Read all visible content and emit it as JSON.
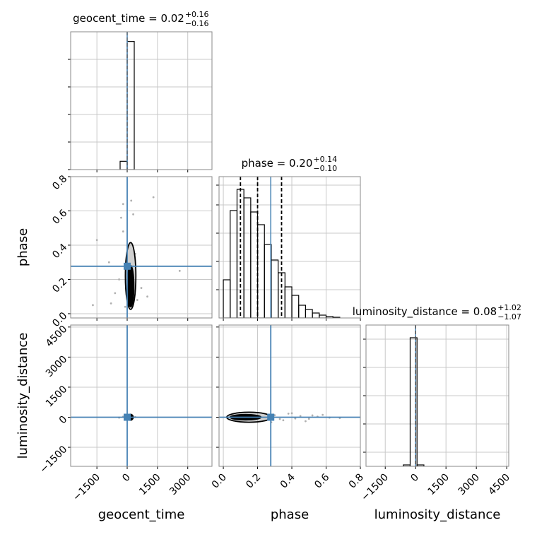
{
  "chart_data": {
    "type": "corner",
    "truth_color": "#4682b4",
    "grid": true,
    "parameters": [
      {
        "name": "geocent_time",
        "title": "geocent_time = 0.02",
        "title_plus": "+0.16",
        "title_minus": "−0.16",
        "lim": [
          -2800,
          4200
        ],
        "ticks": [
          {
            "value": -1500,
            "label": "−1500"
          },
          0,
          1500,
          3000
        ],
        "truth": 0,
        "quantiles": [
          -0.14,
          0.02,
          0.18
        ],
        "hist": {
          "bins": [
            -350,
            0,
            350
          ],
          "counts": [
            0.06,
            0.93
          ],
          "ylim": [
            0,
            1
          ],
          "yticks": [
            0,
            0.2,
            0.4,
            0.6,
            0.8
          ]
        }
      },
      {
        "name": "phase",
        "title": "phase = 0.20",
        "title_plus": "+0.14",
        "title_minus": "−0.10",
        "lim": [
          -0.025,
          0.8
        ],
        "ticks": [
          {
            "value": 0,
            "label": "0.0"
          },
          0.2,
          0.4,
          0.6,
          0.8
        ],
        "truth": 0.277,
        "quantiles": [
          0.1,
          0.2,
          0.34
        ],
        "hist": {
          "bins": [
            0,
            0.04,
            0.08,
            0.12,
            0.16,
            0.2,
            0.24,
            0.28,
            0.32,
            0.36,
            0.4,
            0.44,
            0.48,
            0.52,
            0.56,
            0.6,
            0.64,
            0.68
          ],
          "counts": [
            0.27,
            0.76,
            0.91,
            0.85,
            0.75,
            0.66,
            0.52,
            0.41,
            0.32,
            0.22,
            0.16,
            0.09,
            0.06,
            0.035,
            0.02,
            0.01,
            0.005
          ],
          "ylim": [
            0,
            1
          ],
          "yticks": [
            0.2,
            0.4,
            0.6,
            0.8,
            0.94
          ]
        }
      },
      {
        "name": "luminosity_distance",
        "title": "luminosity_distance = 0.08",
        "title_plus": "+1.02",
        "title_minus": "−1.07",
        "lim": [
          -2450,
          4600
        ],
        "ticks": [
          {
            "value": -1500,
            "label": "−1500"
          },
          0,
          1500,
          3000,
          4500
        ],
        "truth": 0,
        "quantiles": [
          -0.99,
          0.08,
          1.1
        ],
        "hist": {
          "bins": [
            -610,
            -270,
            70,
            410
          ],
          "counts": [
            0.01,
            0.91,
            0.01
          ],
          "ylim": [
            0,
            1
          ],
          "yticks": [
            0.1,
            0.3,
            0.5,
            0.7,
            0.9
          ]
        }
      }
    ],
    "pairs": [
      {
        "row": 1,
        "col": 0,
        "points": [
          [
            -1500,
            0.43
          ],
          [
            -1700,
            0.05
          ],
          [
            -900,
            0.3
          ],
          [
            -600,
            0.12
          ],
          [
            -300,
            0.56
          ],
          [
            -200,
            0.64
          ],
          [
            200,
            0.66
          ],
          [
            300,
            0.58
          ],
          [
            1300,
            0.68
          ],
          [
            2600,
            0.25
          ],
          [
            -400,
            0.2
          ],
          [
            500,
            0.08
          ],
          [
            -100,
            0.04
          ],
          [
            700,
            0.15
          ],
          [
            -800,
            0.06
          ],
          [
            400,
            0.35
          ],
          [
            -200,
            0.48
          ],
          [
            1000,
            0.1
          ]
        ],
        "contours": [
          {
            "cx": 170,
            "cy": 0.22,
            "rx": 260,
            "ry": 0.195
          },
          {
            "cx": 170,
            "cy": 0.16,
            "rx": 160,
            "ry": 0.12
          }
        ]
      },
      {
        "row": 2,
        "col": 0,
        "points": [
          [
            -200,
            30
          ],
          [
            250,
            -40
          ],
          [
            400,
            10
          ],
          [
            -400,
            -20
          ]
        ],
        "contours": [
          {
            "cx": 150,
            "cy": 0,
            "rx": 150,
            "ry": 150
          }
        ]
      },
      {
        "row": 2,
        "col": 1,
        "points": [
          [
            0.3,
            100
          ],
          [
            0.35,
            -150
          ],
          [
            0.45,
            60
          ],
          [
            0.5,
            -80
          ],
          [
            0.55,
            30
          ],
          [
            0.62,
            -20
          ],
          [
            0.4,
            200
          ],
          [
            0.28,
            -250
          ],
          [
            0.38,
            180
          ],
          [
            0.48,
            -200
          ],
          [
            0.58,
            120
          ],
          [
            0.68,
            -40
          ],
          [
            0.33,
            -90
          ],
          [
            0.42,
            -60
          ],
          [
            0.52,
            90
          ]
        ],
        "contours": [
          {
            "cx": 0.15,
            "cy": 0,
            "rx": 0.13,
            "ry": 250
          },
          {
            "cx": 0.13,
            "cy": 0,
            "rx": 0.09,
            "ry": 130
          }
        ]
      }
    ]
  }
}
